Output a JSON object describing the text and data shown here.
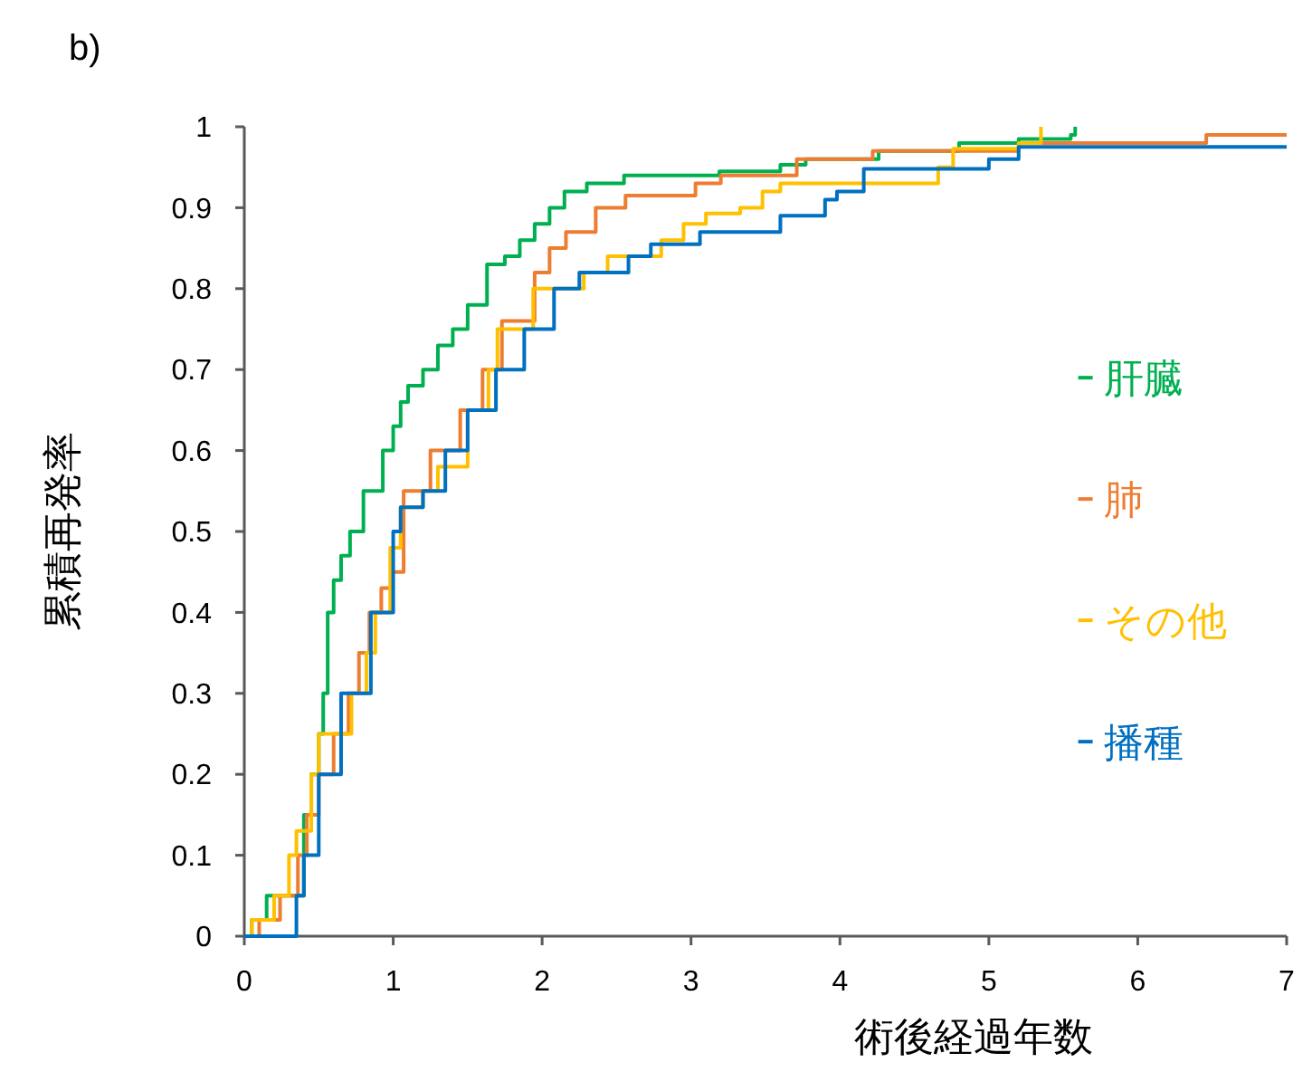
{
  "chart_data": {
    "type": "step",
    "title": "b)",
    "xlabel": "術後経過年数",
    "ylabel": "累積再発率",
    "xlim": [
      0,
      7
    ],
    "xticks": [
      0,
      1,
      2,
      3,
      4,
      5,
      6,
      7
    ],
    "ylim": [
      0,
      1
    ],
    "yticks": [
      0,
      0.1,
      0.2,
      0.3,
      0.4,
      0.5,
      0.6,
      0.7,
      0.8,
      0.9,
      1
    ],
    "grid": false,
    "legend": "right",
    "marker": "none",
    "line_style": "solid",
    "series": [
      {
        "name": "肝臓",
        "color": "#00b050",
        "x": [
          0,
          0.05,
          0.15,
          0.4,
          0.45,
          0.5,
          0.53,
          0.56,
          0.6,
          0.65,
          0.71,
          0.8,
          0.93,
          1.0,
          1.05,
          1.1,
          1.2,
          1.3,
          1.4,
          1.5,
          1.63,
          1.75,
          1.85,
          1.95,
          2.05,
          2.15,
          2.3,
          2.55,
          3.19,
          3.6,
          3.77,
          4.26,
          4.8,
          5.2,
          5.55,
          5.58
        ],
        "values": [
          0,
          0.02,
          0.05,
          0.15,
          0.2,
          0.25,
          0.3,
          0.4,
          0.44,
          0.47,
          0.5,
          0.55,
          0.6,
          0.63,
          0.66,
          0.68,
          0.7,
          0.73,
          0.75,
          0.78,
          0.83,
          0.84,
          0.86,
          0.88,
          0.9,
          0.92,
          0.93,
          0.94,
          0.945,
          0.953,
          0.96,
          0.97,
          0.98,
          0.985,
          0.99,
          1
        ]
      },
      {
        "name": "肺",
        "color": "#ed7d31",
        "x": [
          0,
          0.1,
          0.24,
          0.36,
          0.42,
          0.5,
          0.6,
          0.7,
          0.77,
          0.84,
          0.92,
          0.99,
          1.07,
          1.25,
          1.45,
          1.6,
          1.73,
          1.95,
          2.05,
          2.16,
          2.36,
          2.56,
          3.03,
          3.2,
          3.71,
          4.22,
          5.2,
          6.46,
          7
        ],
        "values": [
          0,
          0.02,
          0.05,
          0.1,
          0.15,
          0.2,
          0.25,
          0.3,
          0.35,
          0.4,
          0.43,
          0.45,
          0.55,
          0.6,
          0.65,
          0.7,
          0.76,
          0.82,
          0.85,
          0.87,
          0.9,
          0.915,
          0.93,
          0.94,
          0.96,
          0.97,
          0.98,
          0.99,
          0.99
        ]
      },
      {
        "name": "その他",
        "color": "#ffc000",
        "x": [
          0,
          0.05,
          0.2,
          0.3,
          0.35,
          0.45,
          0.5,
          0.69,
          0.72,
          0.82,
          0.88,
          0.98,
          1.05,
          1.2,
          1.3,
          1.5,
          1.64,
          1.7,
          1.94,
          2.22,
          2.28,
          2.44,
          2.8,
          2.95,
          3.1,
          3.33,
          3.48,
          3.6,
          3.83,
          4.66,
          4.76,
          5.2,
          5.35
        ],
        "values": [
          0,
          0.02,
          0.05,
          0.1,
          0.13,
          0.2,
          0.25,
          0.25,
          0.3,
          0.35,
          0.4,
          0.48,
          0.53,
          0.55,
          0.58,
          0.65,
          0.7,
          0.75,
          0.8,
          0.8,
          0.82,
          0.84,
          0.86,
          0.88,
          0.893,
          0.9,
          0.92,
          0.93,
          0.93,
          0.95,
          0.973,
          0.98,
          1
        ]
      },
      {
        "name": "播種",
        "color": "#0070c0",
        "x": [
          0,
          0.25,
          0.35,
          0.4,
          0.5,
          0.65,
          0.85,
          1.0,
          1.05,
          1.2,
          1.35,
          1.5,
          1.69,
          1.88,
          2.08,
          2.25,
          2.58,
          2.73,
          3.06,
          3.6,
          3.9,
          3.98,
          4.16,
          5.0,
          5.2,
          7
        ],
        "values": [
          0,
          0,
          0.05,
          0.1,
          0.2,
          0.3,
          0.4,
          0.5,
          0.53,
          0.55,
          0.6,
          0.65,
          0.7,
          0.75,
          0.8,
          0.82,
          0.84,
          0.855,
          0.87,
          0.89,
          0.91,
          0.92,
          0.948,
          0.96,
          0.975,
          0.975
        ]
      }
    ]
  }
}
